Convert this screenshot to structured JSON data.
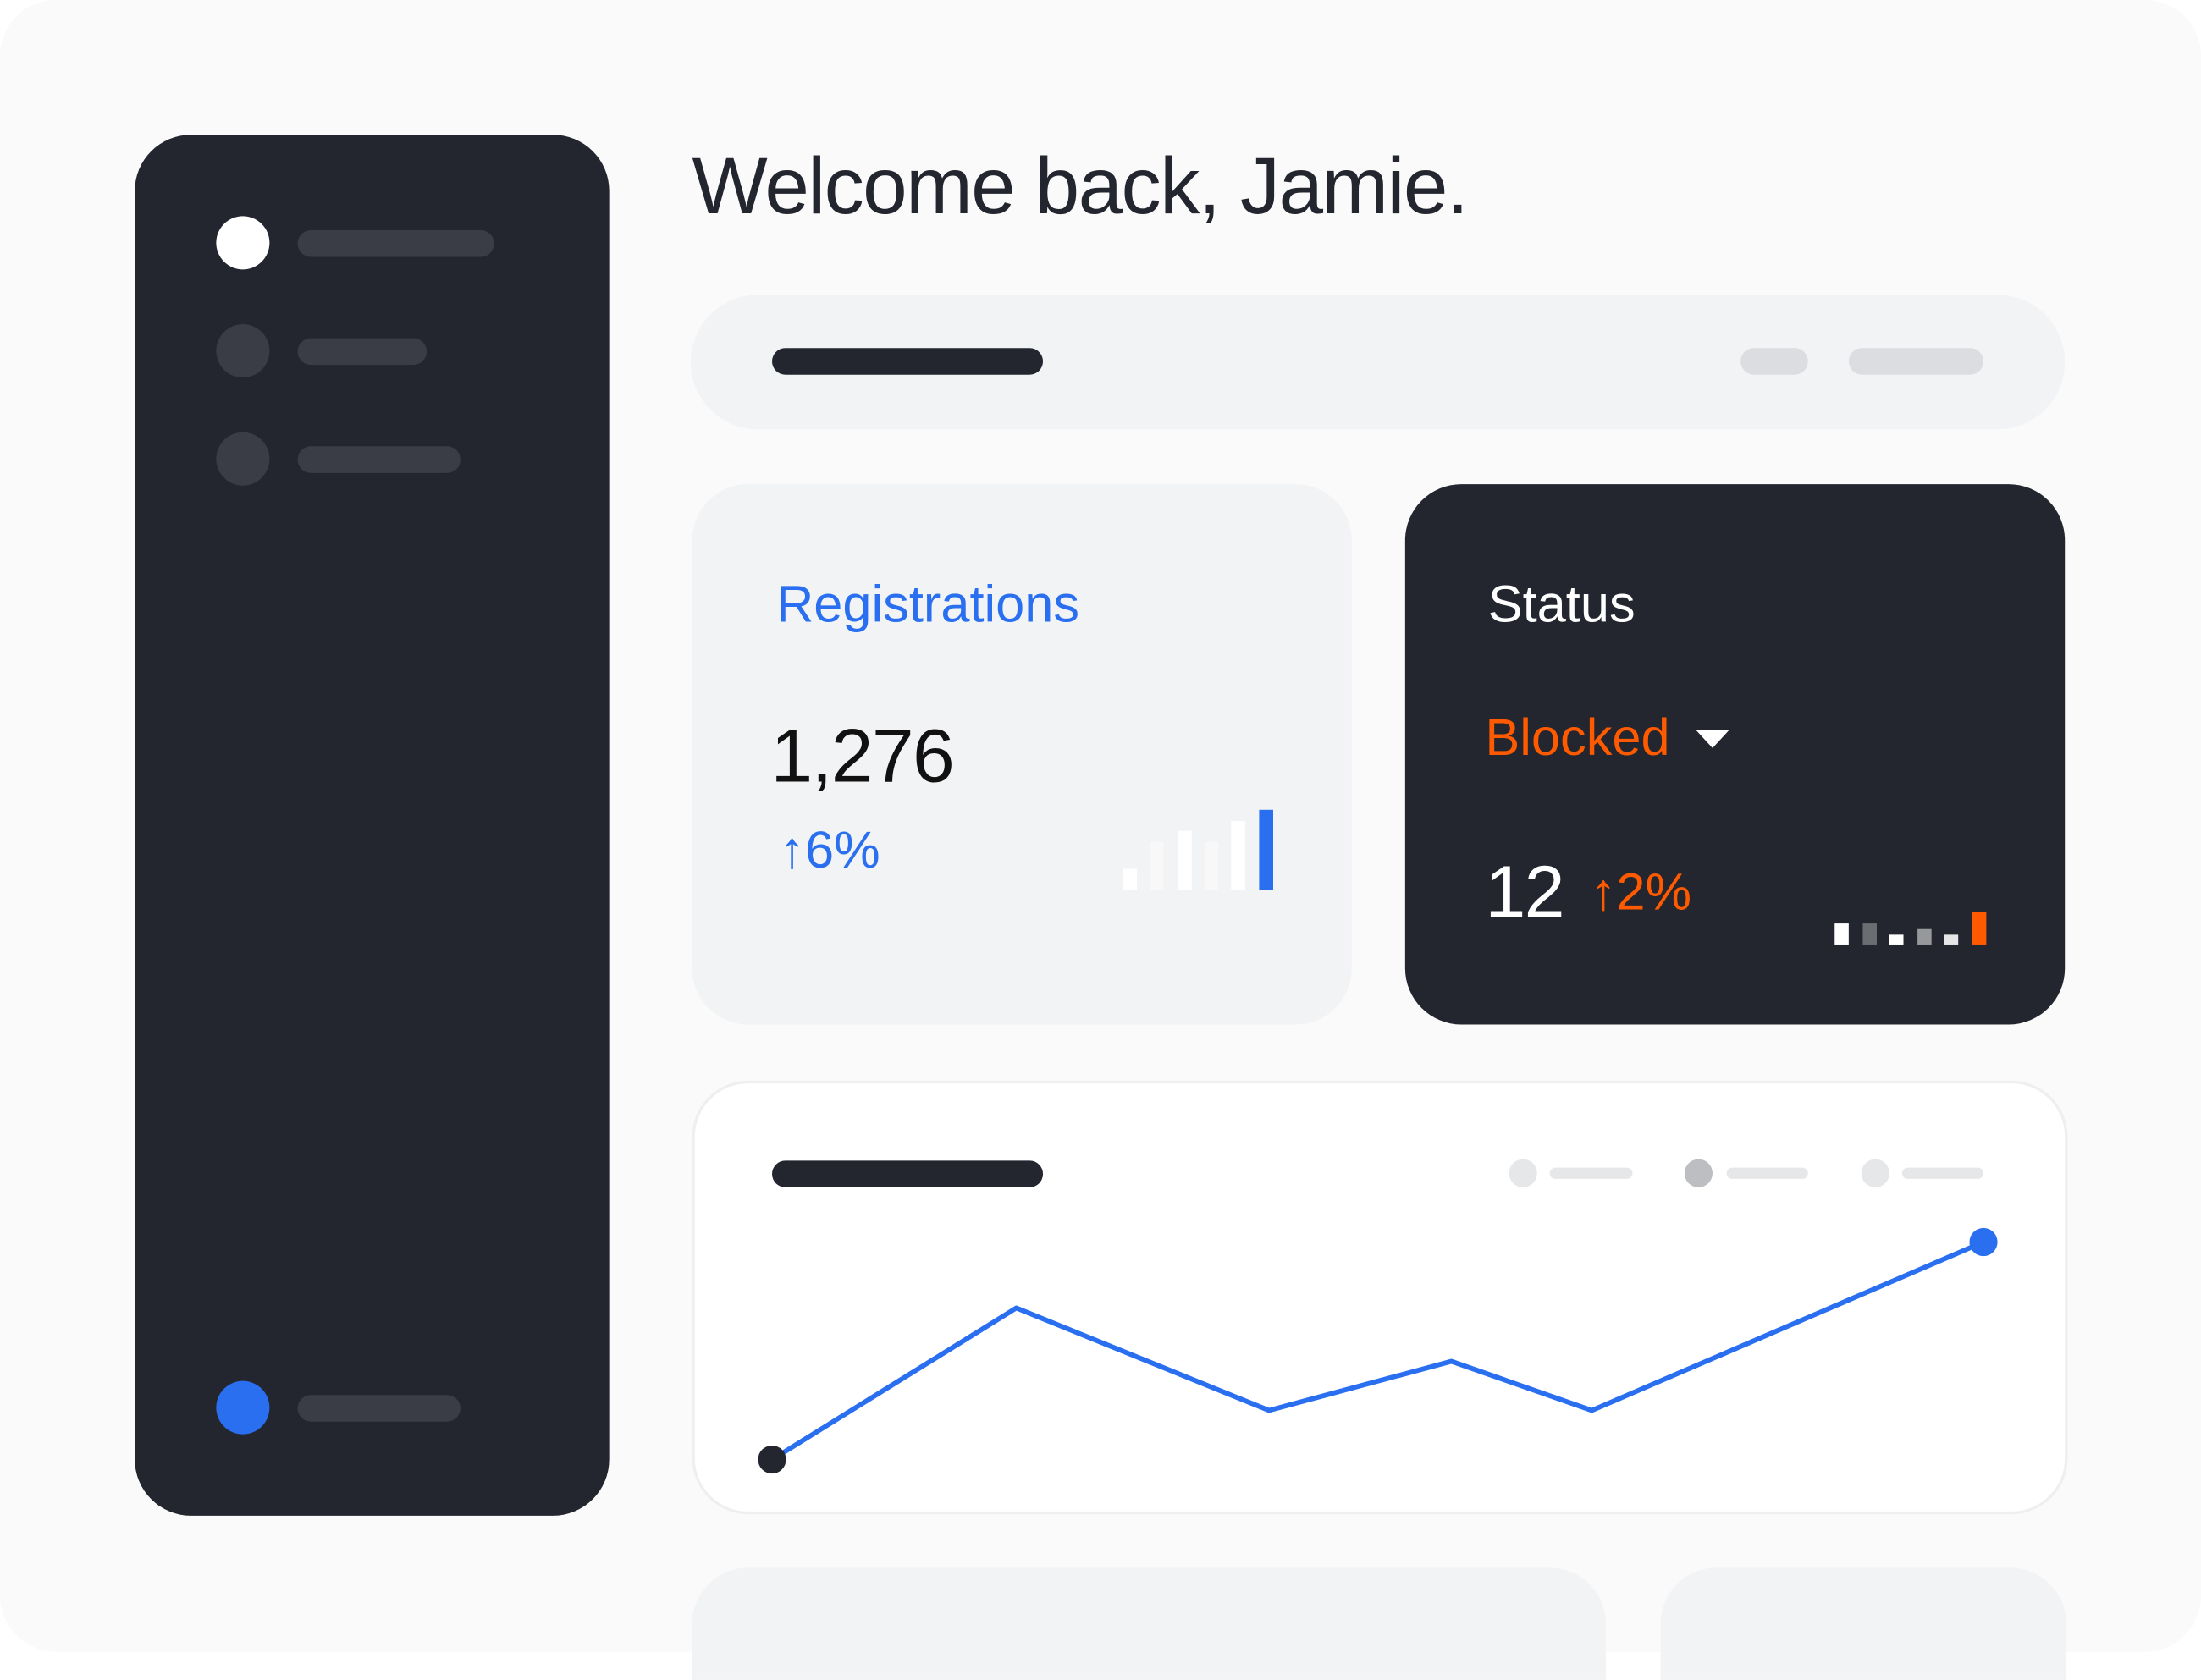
{
  "header": {
    "title": "Welcome back, Jamie."
  },
  "colors": {
    "accent": "#2a6ff0",
    "warning": "#ff5a00",
    "dark": "#23262e",
    "surface": "#f2f3f5"
  },
  "sidebar": {
    "items": [
      {
        "icon": "circle-icon",
        "active": true
      },
      {
        "icon": "circle-icon",
        "active": false
      },
      {
        "icon": "circle-icon",
        "active": false
      }
    ],
    "footer_item": {
      "icon": "avatar-circle-icon"
    }
  },
  "registrations": {
    "label": "Registrations",
    "value": "1,276",
    "change_arrow": "↑",
    "change": "6%",
    "sparkline": [
      25,
      57,
      69,
      57,
      82,
      95
    ]
  },
  "status": {
    "label": "Status",
    "selected": "Blocked",
    "value": "12",
    "change_arrow": "↑",
    "change": "2%",
    "sparkline": [
      25,
      25,
      12,
      19,
      12,
      38
    ]
  },
  "chart_data": {
    "type": "line",
    "x": [
      0,
      174,
      354,
      484,
      584,
      863
    ],
    "values": [
      0,
      108,
      35,
      70,
      35,
      155
    ],
    "legend_entries": 3,
    "grid": false
  }
}
